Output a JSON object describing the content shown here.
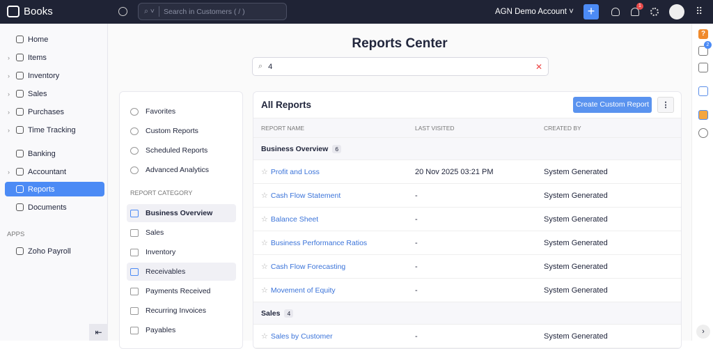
{
  "topbar": {
    "app_name": "Books",
    "search_placeholder": "Search in Customers ( / )",
    "org_name": "AGN Demo Account",
    "notification_count": "1"
  },
  "sidebar": {
    "items": [
      {
        "label": "Home",
        "chevron": false
      },
      {
        "label": "Items",
        "chevron": true
      },
      {
        "label": "Inventory",
        "chevron": true
      },
      {
        "label": "Sales",
        "chevron": true
      },
      {
        "label": "Purchases",
        "chevron": true
      },
      {
        "label": "Time Tracking",
        "chevron": true
      },
      {
        "label": "Banking",
        "chevron": false
      },
      {
        "label": "Accountant",
        "chevron": true
      },
      {
        "label": "Reports",
        "chevron": false,
        "active": true
      },
      {
        "label": "Documents",
        "chevron": false
      }
    ],
    "apps_label": "APPS",
    "apps": [
      {
        "label": "Zoho Payroll"
      }
    ]
  },
  "main": {
    "title": "Reports Center",
    "search_value": "4",
    "left": {
      "items": [
        "Favorites",
        "Custom Reports",
        "Scheduled Reports",
        "Advanced Analytics"
      ],
      "category_heading": "REPORT CATEGORY",
      "categories": [
        "Business Overview",
        "Sales",
        "Inventory",
        "Receivables",
        "Payments Received",
        "Recurring Invoices",
        "Payables"
      ],
      "selected": "Business Overview"
    },
    "reports": {
      "title": "All Reports",
      "create_label": "Create Custom Report",
      "columns": [
        "REPORT NAME",
        "LAST VISITED",
        "CREATED BY"
      ],
      "groups": [
        {
          "name": "Business Overview",
          "count": "6",
          "rows": [
            [
              "Profit and Loss",
              "20 Nov 2025 03:21 PM",
              "System Generated"
            ],
            [
              "Cash Flow Statement",
              "-",
              "System Generated"
            ],
            [
              "Balance Sheet",
              "-",
              "System Generated"
            ],
            [
              "Business Performance Ratios",
              "-",
              "System Generated"
            ],
            [
              "Cash Flow Forecasting",
              "-",
              "System Generated"
            ],
            [
              "Movement of Equity",
              "-",
              "System Generated"
            ]
          ]
        },
        {
          "name": "Sales",
          "count": "4",
          "rows": [
            [
              "Sales by Customer",
              "-",
              "System Generated"
            ]
          ]
        }
      ]
    }
  },
  "rail": {
    "updates_count": "2"
  },
  "colors": {
    "accent": "#4c8bf5",
    "topbar": "#1f2335",
    "link": "#3a73d9"
  }
}
